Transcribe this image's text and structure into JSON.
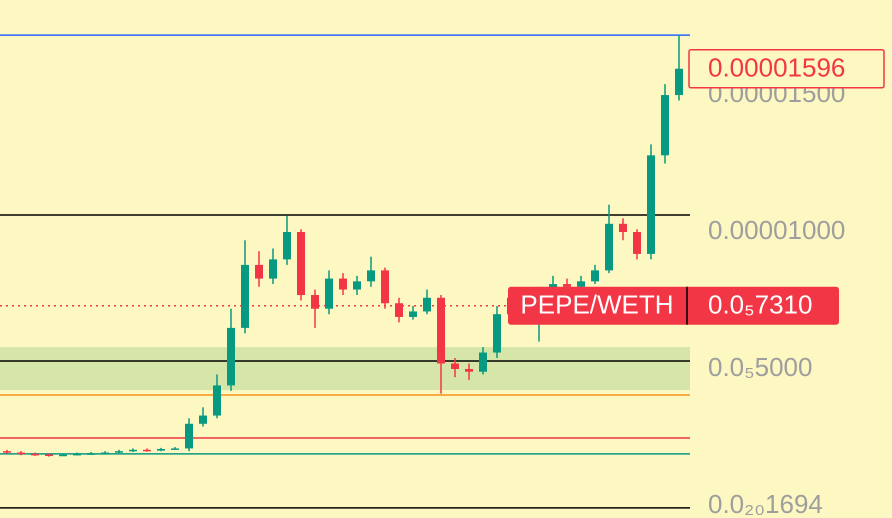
{
  "chart_data": {
    "type": "candlestick",
    "symbol": "PEPE/WETH",
    "up_color": "#089981",
    "down_color": "#f23645",
    "ylim": [
      -4.4e-07,
      1.847e-05
    ],
    "yticks": [
      {
        "value": 1.694e-21,
        "label": "0.0₂₀1694"
      },
      {
        "value": 5e-06,
        "label": "0.0₅5000"
      },
      {
        "value": 1e-05,
        "label": "0.00001000"
      },
      {
        "value": 1.5e-05,
        "label": "0.00001500"
      }
    ],
    "open": [
      2e-06,
      1.95e-06,
      1.9e-06,
      1.88e-06,
      1.85e-06,
      1.87e-06,
      1.9e-06,
      1.92e-06,
      1.95e-06,
      2e-06,
      2.05e-06,
      2.02e-06,
      2.08e-06,
      2.1e-06,
      3e-06,
      3.3e-06,
      4.4e-06,
      6.5e-06,
      8.8e-06,
      8.3e-06,
      9e-06,
      1e-05,
      7.7e-06,
      7.2e-06,
      8.3e-06,
      7.9e-06,
      8.2e-06,
      8.6e-06,
      7.4e-06,
      6.9e-06,
      7.1e-06,
      7.6e-06,
      5.2e-06,
      5e-06,
      4.9e-06,
      5.6e-06,
      7e-06,
      7.6e-06,
      7.4e-06,
      7.8e-06,
      8.1e-06,
      8e-06,
      8.2e-06,
      8.6e-06,
      1.03e-05,
      1e-05,
      9.2e-06,
      1.28e-05,
      1.5e-05
    ],
    "high": [
      2.05e-06,
      2e-06,
      1.95e-06,
      1.92e-06,
      1.92e-06,
      1.95e-06,
      1.97e-06,
      2e-06,
      2.05e-06,
      2.1e-06,
      2.1e-06,
      2.12e-06,
      2.15e-06,
      3.2e-06,
      3.6e-06,
      4.8e-06,
      7.2e-06,
      9.7e-06,
      9.3e-06,
      9.4e-06,
      1.06e-05,
      1.01e-05,
      7.9e-06,
      8.6e-06,
      8.5e-06,
      8.4e-06,
      9.1e-06,
      8.7e-06,
      7.6e-06,
      7.3e-06,
      7.9e-06,
      7.7e-06,
      5.4e-06,
      5.2e-06,
      5.8e-06,
      7.3e-06,
      7.9e-06,
      7.8e-06,
      8e-06,
      8.4e-06,
      8.3e-06,
      8.4e-06,
      8.8e-06,
      1.1e-05,
      1.05e-05,
      1.01e-05,
      1.32e-05,
      1.54e-05,
      1.72e-05
    ],
    "low": [
      1.9e-06,
      1.85e-06,
      1.83e-06,
      1.8e-06,
      1.82e-06,
      1.85e-06,
      1.87e-06,
      1.9e-06,
      1.93e-06,
      1.97e-06,
      1.98e-06,
      2e-06,
      2.05e-06,
      2e-06,
      2.9e-06,
      3.2e-06,
      4.2e-06,
      6.3e-06,
      8e-06,
      8.1e-06,
      8.8e-06,
      7.5e-06,
      6.5e-06,
      7e-06,
      7.7e-06,
      7.7e-06,
      8e-06,
      7.2e-06,
      6.7e-06,
      6.8e-06,
      7e-06,
      4.1e-06,
      4.7e-06,
      4.6e-06,
      4.8e-06,
      5.4e-06,
      6.9e-06,
      7.2e-06,
      6e-06,
      7.6e-06,
      7.8e-06,
      7.9e-06,
      8.1e-06,
      8.5e-06,
      9.7e-06,
      9e-06,
      9e-06,
      1.25e-05,
      1.48e-05
    ],
    "close": [
      1.95e-06,
      1.9e-06,
      1.88e-06,
      1.85e-06,
      1.87e-06,
      1.9e-06,
      1.92e-06,
      1.95e-06,
      2e-06,
      2.05e-06,
      2.02e-06,
      2.08e-06,
      2.1e-06,
      3e-06,
      3.3e-06,
      4.4e-06,
      6.5e-06,
      8.8e-06,
      8.3e-06,
      9e-06,
      1e-05,
      7.7e-06,
      7.2e-06,
      8.3e-06,
      7.9e-06,
      8.2e-06,
      8.6e-06,
      7.4e-06,
      6.9e-06,
      7.1e-06,
      7.6e-06,
      5.2e-06,
      5e-06,
      4.9e-06,
      5.6e-06,
      7e-06,
      7.6e-06,
      7.4e-06,
      7.8e-06,
      8.1e-06,
      8e-06,
      8.2e-06,
      8.6e-06,
      1.03e-05,
      1e-05,
      9.2e-06,
      1.28e-05,
      1.5e-05,
      1.596e-05
    ],
    "zone": {
      "range": [
        4.23e-06,
        5.8e-06
      ],
      "color": "#d6e6a8"
    },
    "levels": [
      {
        "value": 1.719e-05,
        "color": "#2962ff"
      },
      {
        "value": 1.062e-05,
        "color": "#000000"
      },
      {
        "value": 5.29e-06,
        "color": "#000000"
      },
      {
        "value": 4.05e-06,
        "color": "#f7931a"
      },
      {
        "value": 2.48e-06,
        "color": "#f23645"
      },
      {
        "value": 1.9e-06,
        "color": "#089981"
      },
      {
        "value": -7e-08,
        "color": "#000000"
      }
    ],
    "current_price": {
      "value": 7.31e-06,
      "label": "0.0₅7310"
    },
    "last_price": {
      "value": 1.596e-05,
      "label": "0.00001596"
    }
  }
}
